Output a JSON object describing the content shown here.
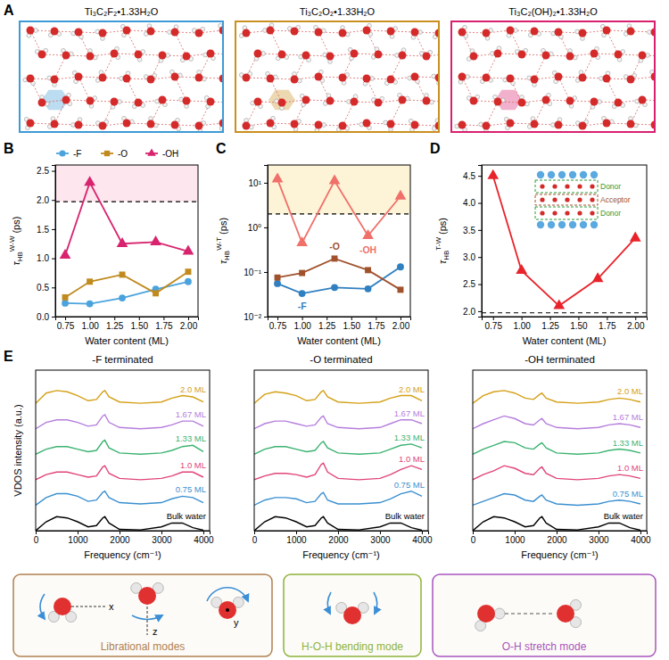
{
  "panel_a": {
    "letter": "A",
    "titles": [
      "Ti₃C₂F₂•1.33H₂O",
      "Ti₃C₂O₂•1.33H₂O",
      "Ti₃C₂(OH)₂•1.33H₂O"
    ],
    "colors": [
      "#3d9ad6",
      "#c98f1f",
      "#d8206e"
    ]
  },
  "chart_data": [
    {
      "panel": "B",
      "type": "line",
      "x": [
        0.75,
        1.0,
        1.33,
        1.67,
        2.0
      ],
      "x_label": "Water content (ML)",
      "y_label": "τ",
      "y_label_sub": "HB",
      "y_label_sup": "W-W",
      "y_label_unit": "(ps)",
      "xlim": [
        0.65,
        2.1
      ],
      "xticks": [
        0.75,
        {
          "value": 1.0,
          "label": "1.00"
        },
        1.25,
        {
          "value": 1.5,
          "label": "1.50"
        },
        1.75,
        {
          "value": 2.0,
          "label": "2.00"
        }
      ],
      "ylim": [
        0,
        2.6
      ],
      "yticks": [
        {
          "value": 0,
          "label": "0.0"
        },
        0.5,
        {
          "value": 1,
          "label": "1.0"
        },
        1.5,
        {
          "value": 2,
          "label": "2.0"
        },
        2.5
      ],
      "reference_line": 1.97,
      "legend": "top",
      "series": [
        {
          "name": "-F",
          "color": "#4ba3dd",
          "marker": "circle",
          "values": [
            0.23,
            0.22,
            0.32,
            0.47,
            0.6
          ]
        },
        {
          "name": "-O",
          "color": "#c08a1e",
          "marker": "square",
          "values": [
            0.33,
            0.6,
            0.72,
            0.4,
            0.77
          ]
        },
        {
          "name": "-OH",
          "color": "#d8246e",
          "marker": "triangle",
          "values": [
            1.05,
            2.3,
            1.25,
            1.28,
            1.12
          ]
        }
      ]
    },
    {
      "panel": "C",
      "type": "line",
      "x": [
        0.75,
        1.0,
        1.33,
        1.67,
        2.0
      ],
      "x_label": "Water content (ML)",
      "y_label": "τ",
      "y_label_sub": "HB",
      "y_label_sup": "W-T",
      "y_label_unit": "(ps)",
      "xlim": [
        0.65,
        2.1
      ],
      "xticks": [
        0.75,
        {
          "value": 1.0,
          "label": "1.00"
        },
        1.25,
        {
          "value": 1.5,
          "label": "1.50"
        },
        1.75,
        {
          "value": 2.0,
          "label": "2.00"
        }
      ],
      "log": "y",
      "ylim": [
        0.01,
        25
      ],
      "yticks": [
        {
          "value": 0.01,
          "label": "10⁻²"
        },
        {
          "value": 0.1,
          "label": "10⁻¹"
        },
        {
          "value": 1,
          "label": "10⁰"
        },
        {
          "value": 10,
          "label": "10¹"
        }
      ],
      "reference_line": 2.0,
      "series": [
        {
          "name": "-F",
          "color": "#2f7fc1",
          "marker": "circle",
          "values": [
            0.055,
            0.033,
            0.045,
            0.042,
            0.13
          ]
        },
        {
          "name": "-O",
          "color": "#a0522d",
          "marker": "square",
          "values": [
            0.075,
            0.095,
            0.2,
            0.11,
            0.04
          ]
        },
        {
          "name": "-OH",
          "color": "#f0706a",
          "marker": "triangle",
          "values": [
            12,
            0.45,
            11,
            0.65,
            5
          ]
        }
      ]
    },
    {
      "panel": "D",
      "type": "line",
      "x": [
        0.75,
        1.0,
        1.33,
        1.67,
        2.0
      ],
      "x_label": "Water content (ML)",
      "y_label": "τ",
      "y_label_sub": "HB",
      "y_label_sup": "T-W",
      "y_label_unit": "(ps)",
      "xlim": [
        0.65,
        2.1
      ],
      "xticks": [
        0.75,
        {
          "value": 1.0,
          "label": "1.00"
        },
        1.25,
        {
          "value": 1.5,
          "label": "1.50"
        },
        1.75,
        {
          "value": 2.0,
          "label": "2.00"
        }
      ],
      "ylim": [
        1.9,
        4.7
      ],
      "yticks": [
        {
          "value": 2,
          "label": "2.0"
        },
        2.5,
        {
          "value": 3,
          "label": "3.0"
        },
        3.5,
        {
          "value": 4,
          "label": "4.0"
        },
        4.5
      ],
      "reference_line": 1.97,
      "annotations": [
        "Donor",
        "Acceptor",
        "Donor"
      ],
      "series": [
        {
          "color": "#e8232a",
          "marker": "triangle",
          "values": [
            4.5,
            2.75,
            2.1,
            2.6,
            3.35
          ]
        }
      ]
    },
    {
      "panel": "E",
      "type": "line",
      "title": "-F terminated",
      "x_label": "Frequency (cm⁻¹)",
      "y_label": "VDOS intensity (a.u.)",
      "tick_labels": "x",
      "x": [
        0,
        250,
        500,
        750,
        1000,
        1250,
        1450,
        1600,
        1650,
        1750,
        2000,
        2500,
        3000,
        3250,
        3500,
        3750,
        4000
      ],
      "xlim": [
        0,
        4150
      ],
      "xticks": [
        0,
        1000,
        2000,
        3000,
        4000
      ],
      "ylim": [
        0,
        6.3
      ],
      "series": [
        {
          "name": "2.0 ML",
          "color": "#d4a017",
          "values": [
            5.0,
            5.4,
            5.5,
            5.45,
            5.3,
            5.1,
            5.15,
            5.45,
            5.5,
            5.25,
            5.05,
            5.0,
            5.05,
            5.2,
            5.3,
            5.25,
            5.05
          ]
        },
        {
          "name": "1.67 ML",
          "color": "#b57edc",
          "values": [
            4.0,
            4.25,
            4.35,
            4.35,
            4.25,
            4.1,
            4.15,
            4.5,
            4.55,
            4.25,
            4.05,
            4.0,
            4.05,
            4.15,
            4.3,
            4.3,
            4.1
          ]
        },
        {
          "name": "1.33 ML",
          "color": "#3cb371",
          "values": [
            3.0,
            3.2,
            3.3,
            3.3,
            3.2,
            3.1,
            3.15,
            3.5,
            3.55,
            3.25,
            3.05,
            3.0,
            3.05,
            3.15,
            3.3,
            3.35,
            3.1
          ]
        },
        {
          "name": "1.0 ML",
          "color": "#e0457b",
          "values": [
            2.0,
            2.2,
            2.3,
            2.3,
            2.2,
            2.1,
            2.15,
            2.5,
            2.55,
            2.25,
            2.05,
            2.0,
            2.05,
            2.15,
            2.3,
            2.3,
            2.1
          ]
        },
        {
          "name": "0.75 ML",
          "color": "#3a8fd0",
          "values": [
            1.0,
            1.3,
            1.45,
            1.45,
            1.35,
            1.15,
            1.2,
            1.5,
            1.55,
            1.3,
            1.1,
            1.05,
            1.1,
            1.25,
            1.35,
            1.3,
            1.1
          ]
        },
        {
          "name": "Bulk water",
          "color": "#000000",
          "values": [
            0,
            0.35,
            0.55,
            0.5,
            0.35,
            0.15,
            0.2,
            0.5,
            0.55,
            0.3,
            0.05,
            0.03,
            0.15,
            0.3,
            0.3,
            0.12,
            0.02
          ]
        }
      ]
    },
    {
      "type": "line",
      "title": "-O terminated",
      "x_label": "Frequency (cm⁻¹)",
      "tick_labels": "x",
      "x": [
        0,
        250,
        500,
        750,
        1000,
        1250,
        1450,
        1600,
        1650,
        1750,
        2000,
        2500,
        3000,
        3250,
        3500,
        3750,
        4000
      ],
      "xlim": [
        0,
        4150
      ],
      "xticks": [
        0,
        1000,
        2000,
        3000,
        4000
      ],
      "ylim": [
        0,
        6.3
      ],
      "series": [
        {
          "name": "2.0 ML",
          "color": "#d4a017",
          "values": [
            5.0,
            5.35,
            5.45,
            5.4,
            5.3,
            5.1,
            5.15,
            5.45,
            5.5,
            5.25,
            5.05,
            5.0,
            5.05,
            5.2,
            5.3,
            5.3,
            5.1
          ]
        },
        {
          "name": "1.67 ML",
          "color": "#b57edc",
          "values": [
            4.0,
            4.2,
            4.3,
            4.3,
            4.2,
            4.1,
            4.15,
            4.45,
            4.5,
            4.2,
            4.05,
            4.0,
            4.05,
            4.2,
            4.35,
            4.35,
            4.2
          ]
        },
        {
          "name": "1.33 ML",
          "color": "#3cb371",
          "values": [
            3.0,
            3.2,
            3.3,
            3.3,
            3.2,
            3.1,
            3.15,
            3.45,
            3.5,
            3.25,
            3.05,
            3.0,
            3.05,
            3.2,
            3.35,
            3.4,
            3.25
          ]
        },
        {
          "name": "1.0 ML",
          "color": "#e0457b",
          "values": [
            2.0,
            2.15,
            2.25,
            2.25,
            2.2,
            2.1,
            2.2,
            2.6,
            2.65,
            2.3,
            2.05,
            2.0,
            2.05,
            2.2,
            2.4,
            2.55,
            2.4
          ]
        },
        {
          "name": "0.75 ML",
          "color": "#3a8fd0",
          "values": [
            1.0,
            1.2,
            1.3,
            1.3,
            1.25,
            1.1,
            1.15,
            1.45,
            1.5,
            1.2,
            1.05,
            1.05,
            1.1,
            1.25,
            1.45,
            1.55,
            1.35
          ]
        },
        {
          "name": "Bulk water",
          "color": "#000000",
          "values": [
            0,
            0.35,
            0.55,
            0.5,
            0.35,
            0.15,
            0.2,
            0.5,
            0.55,
            0.3,
            0.05,
            0.03,
            0.15,
            0.3,
            0.3,
            0.12,
            0.02
          ]
        }
      ]
    },
    {
      "type": "line",
      "title": "-OH terminated",
      "x_label": "Frequency (cm⁻¹)",
      "tick_labels": "x",
      "x": [
        0,
        250,
        500,
        750,
        1000,
        1250,
        1450,
        1600,
        1650,
        1750,
        2000,
        2500,
        3000,
        3250,
        3500,
        3750,
        4000
      ],
      "xlim": [
        0,
        4150
      ],
      "xticks": [
        0,
        1000,
        2000,
        3000,
        4000
      ],
      "ylim": [
        0,
        6.3
      ],
      "series": [
        {
          "name": "2.0 ML",
          "color": "#d4a017",
          "values": [
            5.0,
            5.3,
            5.45,
            5.5,
            5.4,
            5.2,
            5.15,
            5.35,
            5.4,
            5.2,
            5.05,
            5.0,
            5.05,
            5.15,
            5.2,
            5.15,
            5.05
          ]
        },
        {
          "name": "1.67 ML",
          "color": "#b57edc",
          "values": [
            4.0,
            4.2,
            4.35,
            4.5,
            4.4,
            4.2,
            4.15,
            4.35,
            4.4,
            4.2,
            4.05,
            4.0,
            4.05,
            4.15,
            4.2,
            4.15,
            4.05
          ]
        },
        {
          "name": "1.33 ML",
          "color": "#3cb371",
          "values": [
            3.0,
            3.2,
            3.35,
            3.5,
            3.45,
            3.25,
            3.2,
            3.4,
            3.45,
            3.25,
            3.05,
            3.0,
            3.05,
            3.15,
            3.2,
            3.15,
            3.05
          ]
        },
        {
          "name": "1.0 ML",
          "color": "#e0457b",
          "values": [
            2.0,
            2.2,
            2.35,
            2.55,
            2.45,
            2.25,
            2.2,
            2.45,
            2.5,
            2.25,
            2.05,
            2.0,
            2.05,
            2.15,
            2.2,
            2.15,
            2.05
          ]
        },
        {
          "name": "0.75 ML",
          "color": "#3a8fd0",
          "values": [
            1.0,
            1.15,
            1.3,
            1.45,
            1.4,
            1.2,
            1.15,
            1.35,
            1.4,
            1.2,
            1.05,
            1.0,
            1.05,
            1.15,
            1.2,
            1.15,
            1.05
          ]
        },
        {
          "name": "Bulk water",
          "color": "#000000",
          "values": [
            0,
            0.35,
            0.55,
            0.5,
            0.35,
            0.15,
            0.2,
            0.5,
            0.55,
            0.3,
            0.05,
            0.03,
            0.15,
            0.3,
            0.3,
            0.12,
            0.02
          ]
        }
      ]
    }
  ],
  "modes": {
    "titles": [
      "Librational modes",
      "H-O-H bending mode",
      "O-H stretch mode"
    ],
    "axis_labels": [
      "x",
      "z",
      "y"
    ],
    "colors": [
      "#b08050",
      "#8db33a",
      "#a855bd"
    ]
  }
}
